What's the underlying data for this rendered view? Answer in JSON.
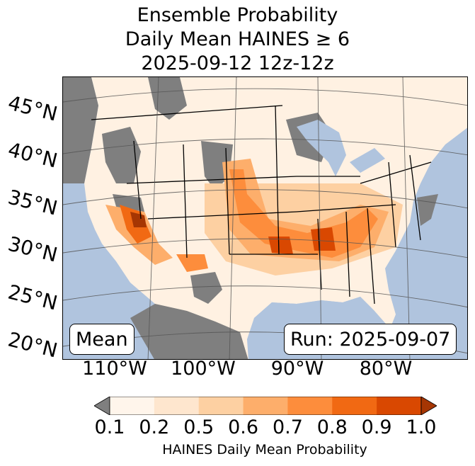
{
  "title": {
    "line1": "Ensemble Probability",
    "line2": "Daily Mean HAINES ≥ 6",
    "line3": "2025-09-12 12z-12z"
  },
  "map": {
    "ocean_color": "#b0c4de",
    "land_none_color": "#7f7f7f",
    "lat_labels": [
      "45°N",
      "40°N",
      "35°N",
      "30°N",
      "25°N",
      "20°N"
    ],
    "lon_labels": [
      "110°W",
      "100°W",
      "90°W",
      "80°W"
    ],
    "stat_label": "Mean",
    "run_label": "Run: 2025-09-07"
  },
  "colorbar": {
    "ticks": [
      "0.1",
      "0.2",
      "0.5",
      "0.6",
      "0.7",
      "0.8",
      "0.9",
      "1.0"
    ],
    "colors": [
      "#fff5eb",
      "#fee6ce",
      "#fdd0a2",
      "#fdae6b",
      "#fd8d3c",
      "#f16913",
      "#d94801",
      "#a63603"
    ],
    "under_color": "#7f7f7f",
    "label": "HAINES Daily Mean Probability"
  }
}
